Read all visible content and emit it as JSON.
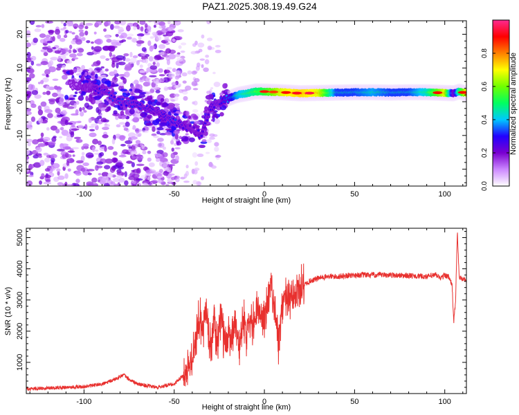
{
  "figure": {
    "title": "PAZ1.2025.308.19.49.G24"
  },
  "chart_data": [
    {
      "type": "heatmap",
      "title": "PAZ1.2025.308.19.49.G24",
      "xlabel": "Height of straight line (km)",
      "ylabel": "Frequency (Hz)",
      "xlim": [
        -132,
        112
      ],
      "ylim": [
        -25,
        24
      ],
      "xticks": [
        -100,
        -50,
        0,
        50,
        100
      ],
      "yticks": [
        -20,
        -10,
        0,
        10,
        20
      ],
      "colorbar": {
        "label": "Normalized spectral amplitude",
        "range": [
          0,
          1
        ],
        "ticks": [
          "0.0",
          "0.2",
          "0.4",
          "0.6",
          "0.8"
        ],
        "colors": [
          "#ffffff",
          "#cc88ff",
          "#7a00d0",
          "#2200ff",
          "#00c8ff",
          "#00ff60",
          "#70ff00",
          "#ffff00",
          "#ff8000",
          "#ff0000",
          "#ff2a90"
        ]
      },
      "ridge": {
        "x": [
          -105,
          -95,
          -90,
          -80,
          -70,
          -60,
          -50,
          -40,
          -35,
          -30,
          -25,
          -20,
          -15,
          -10,
          -5,
          0,
          10,
          20,
          30,
          40,
          50,
          60,
          70,
          80,
          90,
          100,
          105,
          108,
          112
        ],
        "freq": [
          5,
          4,
          3,
          0,
          -1,
          -3,
          -6,
          -8,
          -10,
          -2,
          0,
          1,
          2,
          2.5,
          3,
          3,
          2.8,
          2.5,
          2.6,
          2.7,
          2.8,
          2.8,
          2.7,
          2.8,
          2.8,
          2.6,
          2.5,
          3,
          2.5
        ],
        "amplitude": [
          0.15,
          0.2,
          0.3,
          0.3,
          0.3,
          0.25,
          0.3,
          0.2,
          0.25,
          0.25,
          0.3,
          0.35,
          0.5,
          0.55,
          0.6,
          0.65,
          0.8,
          0.85,
          0.8,
          0.45,
          0.45,
          0.5,
          0.45,
          0.45,
          0.55,
          0.8,
          0.3,
          0.6,
          0.8
        ]
      }
    },
    {
      "type": "line",
      "xlabel": "Height of straight line (km)",
      "ylabel": "SNR (10 * v/v)",
      "xlim": [
        -132,
        112
      ],
      "ylim": [
        0,
        5300
      ],
      "xticks": [
        -100,
        -50,
        0,
        50,
        100
      ],
      "yticks": [
        1000,
        2000,
        3000,
        4000,
        5000
      ],
      "color": "#e8302e",
      "series": [
        {
          "name": "SNR",
          "x": [
            -132,
            -120,
            -110,
            -100,
            -90,
            -85,
            -80,
            -78,
            -75,
            -70,
            -65,
            -60,
            -55,
            -50,
            -45,
            -40,
            -38,
            -36,
            -34,
            -32,
            -30,
            -28,
            -26,
            -24,
            -22,
            -20,
            -18,
            -16,
            -14,
            -12,
            -10,
            -8,
            -6,
            -4,
            -2,
            0,
            2,
            4,
            6,
            8,
            10,
            12,
            14,
            16,
            18,
            20,
            25,
            30,
            35,
            40,
            50,
            60,
            70,
            80,
            90,
            95,
            98,
            100,
            102,
            104,
            105,
            106,
            107,
            108,
            110,
            112
          ],
          "y": [
            150,
            180,
            200,
            220,
            300,
            400,
            550,
            600,
            450,
            300,
            250,
            200,
            250,
            300,
            600,
            1100,
            1600,
            2500,
            2000,
            2800,
            1500,
            2200,
            1600,
            2600,
            1400,
            2000,
            1800,
            2400,
            1500,
            2300,
            2000,
            2600,
            2200,
            2900,
            2400,
            2500,
            2900,
            3400,
            2700,
            1500,
            2900,
            3100,
            2900,
            3000,
            3200,
            3400,
            3600,
            3700,
            3750,
            3750,
            3800,
            3800,
            3800,
            3780,
            3750,
            3800,
            3700,
            3800,
            3750,
            3500,
            2300,
            3000,
            5200,
            3700,
            3700,
            3600
          ]
        }
      ]
    }
  ]
}
